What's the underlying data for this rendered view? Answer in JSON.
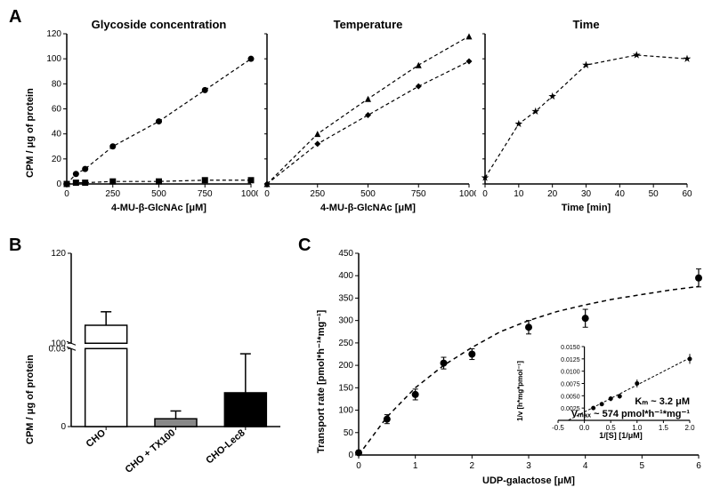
{
  "panelA": {
    "panel_label": "A",
    "ylabel": "CPM / μg of protein",
    "charts": [
      {
        "title": "Glycoside concentration",
        "xlabel": "4-MU-β-GlcNAc [μM]",
        "xlim": [
          0,
          1000
        ],
        "ylim": [
          0,
          120
        ],
        "xtick_step": 250,
        "ytick_step": 20,
        "series": [
          {
            "marker": "circle",
            "data": [
              [
                0,
                0
              ],
              [
                50,
                8
              ],
              [
                100,
                12
              ],
              [
                250,
                30
              ],
              [
                500,
                50
              ],
              [
                750,
                75
              ],
              [
                1000,
                100
              ]
            ]
          },
          {
            "marker": "square",
            "data": [
              [
                0,
                0
              ],
              [
                50,
                1
              ],
              [
                100,
                1
              ],
              [
                250,
                2
              ],
              [
                500,
                2
              ],
              [
                750,
                3
              ],
              [
                1000,
                3
              ]
            ]
          }
        ]
      },
      {
        "title": "Temperature",
        "xlabel": "4-MU-β-GlcNAc [μM]",
        "xlim": [
          0,
          1000
        ],
        "ylim": [
          0,
          120
        ],
        "xtick_step": 250,
        "ytick_step": 20,
        "series": [
          {
            "marker": "triangle",
            "data": [
              [
                0,
                0
              ],
              [
                250,
                40
              ],
              [
                500,
                68
              ],
              [
                750,
                95
              ],
              [
                1000,
                118
              ]
            ]
          },
          {
            "marker": "diamond",
            "data": [
              [
                0,
                0
              ],
              [
                250,
                32
              ],
              [
                500,
                55
              ],
              [
                750,
                78
              ],
              [
                1000,
                98
              ]
            ]
          }
        ]
      },
      {
        "title": "Time",
        "xlabel": "Time [min]",
        "xlim": [
          0,
          60
        ],
        "ylim": [
          0,
          120
        ],
        "xtick_step": 10,
        "ytick_step": 20,
        "series": [
          {
            "marker": "star",
            "data": [
              [
                0,
                5
              ],
              [
                10,
                48
              ],
              [
                15,
                58
              ],
              [
                20,
                70
              ],
              [
                30,
                95
              ],
              [
                45,
                103
              ],
              [
                60,
                100
              ]
            ]
          }
        ]
      }
    ]
  },
  "panelB": {
    "panel_label": "B",
    "ylabel": "CPM / μg of protein",
    "categories": [
      "CHO",
      "CHO + TX100",
      "CHO-Lec8"
    ],
    "upper_ylim": [
      100,
      120
    ],
    "lower_ylim": [
      0,
      0.03
    ],
    "bars": [
      {
        "value": 104,
        "error": 3,
        "color": "#ffffff",
        "in_upper": true
      },
      {
        "value": 0.003,
        "error": 0.003,
        "color": "#888888",
        "in_upper": false
      },
      {
        "value": 0.013,
        "error": 0.015,
        "color": "#000000",
        "in_upper": false
      }
    ]
  },
  "panelC": {
    "panel_label": "C",
    "ylabel": "Transport rate [pmol*h⁻¹*mg⁻¹]",
    "xlabel": "UDP-galactose [μM]",
    "xlim": [
      0,
      6
    ],
    "ylim": [
      0,
      450
    ],
    "xtick_step": 1,
    "ytick_step": 50,
    "data": [
      {
        "x": 0,
        "y": 5,
        "err": 5
      },
      {
        "x": 0.5,
        "y": 80,
        "err": 10
      },
      {
        "x": 1,
        "y": 135,
        "err": 12
      },
      {
        "x": 1.5,
        "y": 205,
        "err": 13
      },
      {
        "x": 2,
        "y": 225,
        "err": 12
      },
      {
        "x": 3,
        "y": 285,
        "err": 15
      },
      {
        "x": 4,
        "y": 305,
        "err": 20
      },
      {
        "x": 6,
        "y": 395,
        "err": 20
      }
    ],
    "fit": [
      [
        0,
        0
      ],
      [
        0.5,
        85
      ],
      [
        1,
        150
      ],
      [
        1.5,
        200
      ],
      [
        2,
        240
      ],
      [
        2.5,
        275
      ],
      [
        3,
        300
      ],
      [
        3.5,
        320
      ],
      [
        4,
        335
      ],
      [
        4.5,
        348
      ],
      [
        5,
        358
      ],
      [
        5.5,
        368
      ],
      [
        6,
        376
      ]
    ],
    "inset": {
      "xlabel": "1/[S] [1/μM]",
      "ylabel": "1/v [h*mg*pmol⁻¹]",
      "xlim": [
        -0.5,
        2.0
      ],
      "ylim": [
        0,
        0.015
      ],
      "xtick_step": 0.5,
      "yticks": [
        "0.0025",
        "0.0050",
        "0.0075",
        "0.0100",
        "0.0125",
        "0.0150"
      ],
      "data": [
        {
          "x": 0.17,
          "y": 0.0025,
          "err": 0.0003
        },
        {
          "x": 0.33,
          "y": 0.0033,
          "err": 0.0004
        },
        {
          "x": 0.5,
          "y": 0.0044,
          "err": 0.0005
        },
        {
          "x": 0.67,
          "y": 0.0049,
          "err": 0.0005
        },
        {
          "x": 1.0,
          "y": 0.0075,
          "err": 0.0008
        },
        {
          "x": 2.0,
          "y": 0.0125,
          "err": 0.001
        }
      ],
      "fit": [
        [
          -0.3,
          5e-05
        ],
        [
          2.0,
          0.0127
        ]
      ],
      "km_text": "Kₘ   ~ 3.2 μM",
      "vmax_text": "Vₘₐₓ ~ 574 pmol*h⁻¹*mg⁻¹"
    }
  },
  "colors": {
    "axis": "#000000",
    "background": "#ffffff"
  }
}
